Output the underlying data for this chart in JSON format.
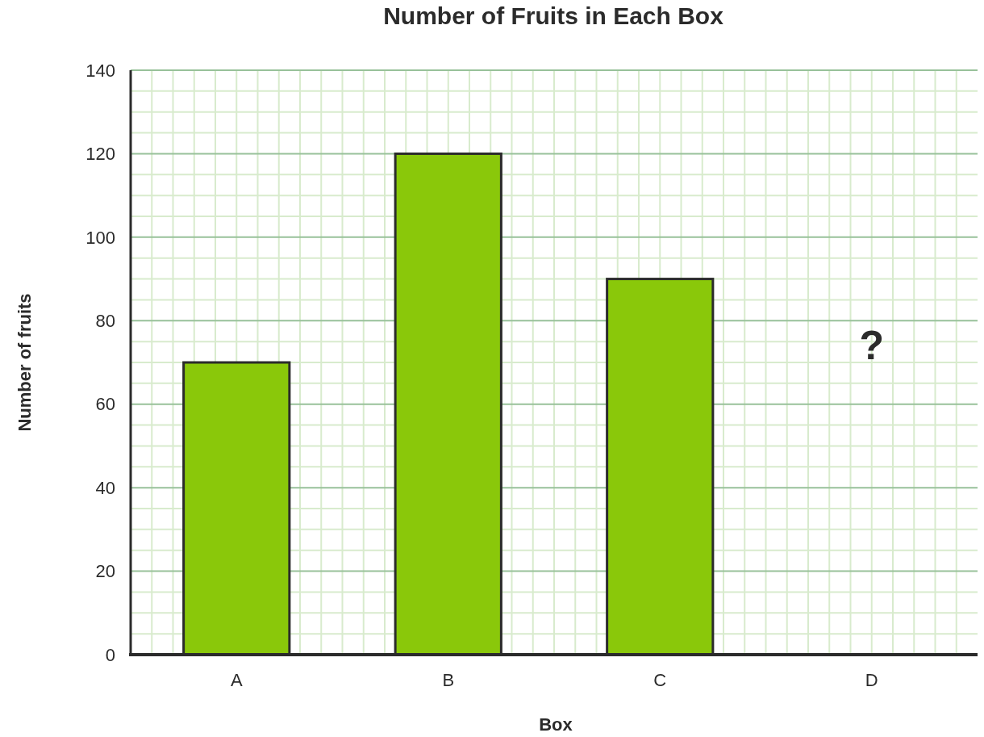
{
  "chart_data": {
    "type": "bar",
    "title": "Number of Fruits in Each Box",
    "xlabel": "Box",
    "ylabel": "Number of fruits",
    "categories": [
      "A",
      "B",
      "C",
      "D"
    ],
    "values": [
      70,
      120,
      90,
      null
    ],
    "color": "#8ac80a",
    "ylim": [
      0,
      140
    ],
    "yticks": [
      0,
      20,
      40,
      60,
      80,
      100,
      120,
      140
    ],
    "grid": true,
    "annotations": [
      "?"
    ]
  }
}
